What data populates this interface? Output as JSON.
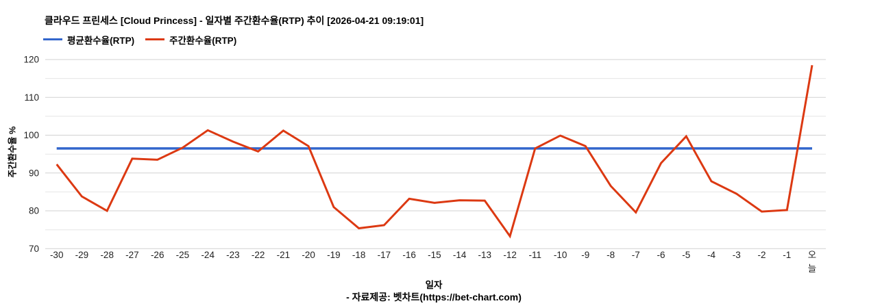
{
  "header": {
    "title": "클라우드 프린세스 [Cloud Princess] - 일자별 주간환수율(RTP) 추이 [2026-04-21 09:19:01]"
  },
  "legend": {
    "items": [
      {
        "label": "평균환수율(RTP)",
        "color": "#3366cc"
      },
      {
        "label": "주간환수율(RTP)",
        "color": "#dc3912"
      }
    ]
  },
  "axes": {
    "y_title": "주간환수율 %",
    "x_title": "일자"
  },
  "footer": {
    "text": "- 자료제공: 벳차트(https://bet-chart.com)"
  },
  "chart_data": {
    "type": "line",
    "title": "클라우드 프린세스 [Cloud Princess] - 일자별 주간환수율(RTP) 추이 [2026-04-21 09:19:01]",
    "xlabel": "일자",
    "ylabel": "주간환수율 %",
    "ylim": [
      70,
      120
    ],
    "yticks_major": [
      70,
      80,
      90,
      100,
      110,
      120
    ],
    "gridline_step": 5,
    "grid": true,
    "legend_position": "top",
    "categories": [
      "-30",
      "-29",
      "-28",
      "-27",
      "-26",
      "-25",
      "-24",
      "-23",
      "-22",
      "-21",
      "-20",
      "-19",
      "-18",
      "-17",
      "-16",
      "-15",
      "-14",
      "-13",
      "-12",
      "-11",
      "-10",
      "-9",
      "-8",
      "-7",
      "-6",
      "-5",
      "-4",
      "-3",
      "-2",
      "-1",
      "오늘"
    ],
    "series": [
      {
        "name": "평균환수율(RTP)",
        "color": "#3366cc",
        "constant_value": 96.5
      },
      {
        "name": "주간환수율(RTP)",
        "color": "#dc3912",
        "values": [
          92.3,
          83.8,
          80.0,
          93.8,
          93.5,
          96.7,
          101.3,
          98.3,
          95.7,
          101.2,
          97.1,
          81.0,
          75.4,
          76.2,
          83.2,
          82.1,
          82.8,
          82.7,
          73.3,
          96.5,
          99.9,
          97.1,
          86.6,
          79.6,
          92.6,
          99.7,
          87.8,
          84.5,
          79.8,
          80.2,
          118.5
        ]
      }
    ]
  }
}
